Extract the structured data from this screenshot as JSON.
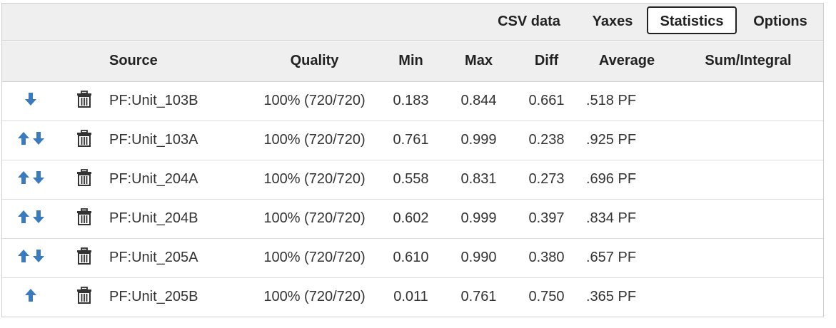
{
  "tabs": [
    {
      "label": "CSV data",
      "active": false
    },
    {
      "label": "Yaxes",
      "active": false
    },
    {
      "label": "Statistics",
      "active": true
    },
    {
      "label": "Options",
      "active": false
    }
  ],
  "columns": {
    "source": "Source",
    "quality": "Quality",
    "min": "Min",
    "max": "Max",
    "diff": "Diff",
    "average": "Average",
    "sum": "Sum/Integral"
  },
  "colors": {
    "arrow": "#3a7bbf",
    "header_bg": "#efefef",
    "active_tab_border": "#222222"
  },
  "icons": {
    "up": "arrow-up-icon",
    "down": "arrow-down-icon",
    "delete": "trash-icon"
  },
  "rows": [
    {
      "up": false,
      "down": true,
      "source": "PF:Unit_103B",
      "quality": "100% (720/720)",
      "min": "0.183",
      "max": "0.844",
      "diff": "0.661",
      "average": ".518 PF",
      "sum": ""
    },
    {
      "up": true,
      "down": true,
      "source": "PF:Unit_103A",
      "quality": "100% (720/720)",
      "min": "0.761",
      "max": "0.999",
      "diff": "0.238",
      "average": ".925 PF",
      "sum": ""
    },
    {
      "up": true,
      "down": true,
      "source": "PF:Unit_204A",
      "quality": "100% (720/720)",
      "min": "0.558",
      "max": "0.831",
      "diff": "0.273",
      "average": ".696 PF",
      "sum": ""
    },
    {
      "up": true,
      "down": true,
      "source": "PF:Unit_204B",
      "quality": "100% (720/720)",
      "min": "0.602",
      "max": "0.999",
      "diff": "0.397",
      "average": ".834 PF",
      "sum": ""
    },
    {
      "up": true,
      "down": true,
      "source": "PF:Unit_205A",
      "quality": "100% (720/720)",
      "min": "0.610",
      "max": "0.990",
      "diff": "0.380",
      "average": ".657 PF",
      "sum": ""
    },
    {
      "up": true,
      "down": false,
      "source": "PF:Unit_205B",
      "quality": "100% (720/720)",
      "min": "0.011",
      "max": "0.761",
      "diff": "0.750",
      "average": ".365 PF",
      "sum": ""
    }
  ]
}
